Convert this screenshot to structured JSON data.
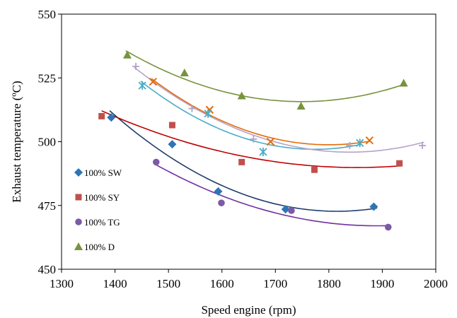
{
  "chart_data": {
    "type": "scatter",
    "xlabel": "Speed engine (rpm)",
    "ylabel": "Exhaust temperature (ºC)",
    "xlim": [
      1300,
      2000
    ],
    "ylim": [
      450,
      550
    ],
    "xticks": [
      "1300",
      "1400",
      "1500",
      "1600",
      "1700",
      "1800",
      "1900",
      "2000"
    ],
    "yticks": [
      "450",
      "475",
      "500",
      "525",
      "550"
    ],
    "grid": false,
    "legend_position": "left",
    "series": [
      {
        "name": "100% SW",
        "marker": "diamond",
        "color": "#2e75b6",
        "trend_color": "#1f3c6e",
        "x": [
          1393,
          1507,
          1593,
          1719,
          1884
        ],
        "y": [
          509.5,
          499,
          480.5,
          473.5,
          474.5
        ],
        "trend_x_range": [
          1390,
          1890
        ]
      },
      {
        "name": "100% SY",
        "marker": "square",
        "color": "#c0504d",
        "trend_color": "#c00000",
        "x": [
          1375,
          1507,
          1637,
          1773,
          1932
        ],
        "y": [
          510,
          506.5,
          492,
          489,
          491.5
        ],
        "trend_x_range": [
          1375,
          1935
        ]
      },
      {
        "name": "100% TG",
        "marker": "circle",
        "color": "#7b5aa6",
        "trend_color": "#7030a0",
        "x": [
          1477,
          1599,
          1730,
          1911
        ],
        "y": [
          492,
          476,
          473,
          466.5
        ],
        "trend_x_range": [
          1477,
          1912
        ]
      },
      {
        "name": "100% D",
        "marker": "triangle",
        "color": "#77933c",
        "trend_color": "#77933c",
        "x": [
          1423,
          1530,
          1637,
          1748,
          1940
        ],
        "y": [
          534,
          527,
          518,
          514,
          523
        ],
        "trend_x_range": [
          1420,
          1942
        ]
      },
      {
        "name": "",
        "marker": "x",
        "color": "#e46c0a",
        "trend_color": "#e46c0a",
        "x": [
          1471,
          1577,
          1691,
          1876
        ],
        "y": [
          523.5,
          512.5,
          500,
          500.5
        ],
        "trend_x_range": [
          1468,
          1878
        ]
      },
      {
        "name": "",
        "marker": "star",
        "color": "#4bacc6",
        "trend_color": "#4bacc6",
        "x": [
          1451,
          1574,
          1677,
          1858
        ],
        "y": [
          522,
          511,
          496,
          499.5
        ],
        "trend_x_range": [
          1448,
          1860
        ]
      },
      {
        "name": "",
        "marker": "plus",
        "color": "#b3a2c7",
        "trend_color": "#b3a2c7",
        "x": [
          1439,
          1544,
          1659,
          1839,
          1975
        ],
        "y": [
          529.5,
          513,
          501,
          498.5,
          498.5
        ],
        "trend_x_range": [
          1436,
          1978
        ]
      }
    ]
  }
}
